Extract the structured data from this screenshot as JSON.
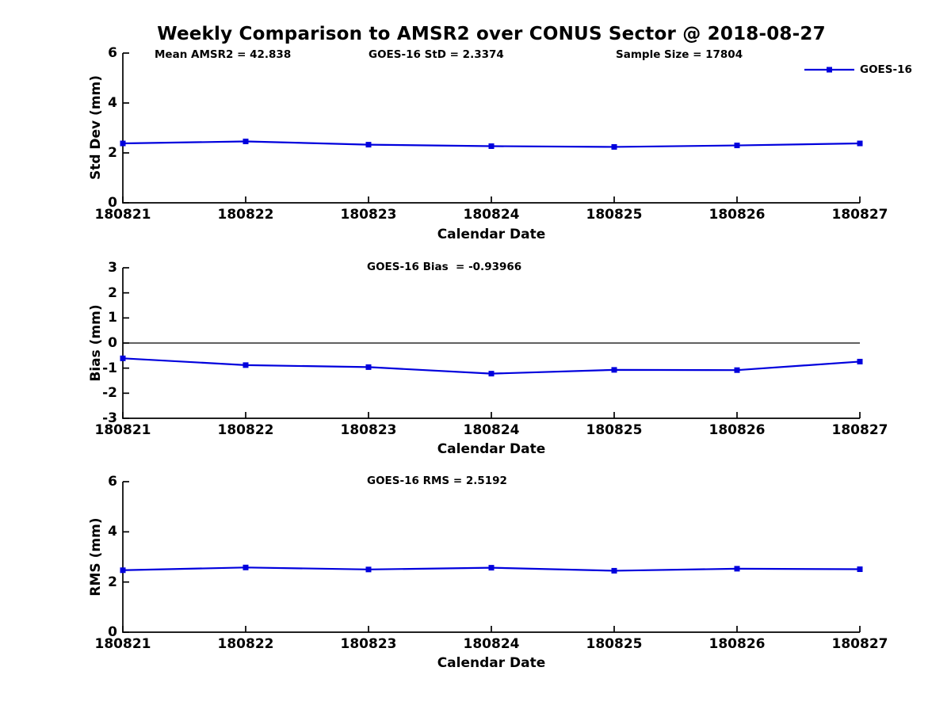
{
  "title": "Weekly Comparison to AMSR2 over CONUS Sector @ 2018-08-27",
  "colors": {
    "line": "#0000dd",
    "axis": "#000000",
    "text": "#000000",
    "background": "#ffffff"
  },
  "legend": {
    "label": "GOES-16",
    "position": "top-right",
    "marker": "square-on-line"
  },
  "chart_data": [
    {
      "type": "line",
      "title": "",
      "annotations": [
        "Mean AMSR2 = 42.838",
        "GOES-16 StD = 2.3374",
        "Sample Size = 17804"
      ],
      "xlabel": "Calendar Date",
      "ylabel": "Std Dev (mm)",
      "categories": [
        "180821",
        "180822",
        "180823",
        "180824",
        "180825",
        "180826",
        "180827"
      ],
      "series": [
        {
          "name": "GOES-16",
          "color": "#0000dd",
          "values": [
            2.38,
            2.46,
            2.33,
            2.27,
            2.24,
            2.3,
            2.38
          ]
        }
      ],
      "ylim": [
        0,
        6
      ],
      "yticks": [
        0,
        2,
        4,
        6
      ],
      "ytick_labels": [
        "6",
        "4",
        "2",
        "0"
      ],
      "grid": false,
      "zero_line": false,
      "stats": {
        "mean_amsr2": 42.838,
        "goes16_std": 2.3374,
        "sample_size": 17804
      }
    },
    {
      "type": "line",
      "title": "",
      "annotations": [
        "GOES-16 Bias  = -0.93966"
      ],
      "xlabel": "Calendar Date",
      "ylabel": "Bias (mm)",
      "categories": [
        "180821",
        "180822",
        "180823",
        "180824",
        "180825",
        "180826",
        "180827"
      ],
      "series": [
        {
          "name": "GOES-16",
          "color": "#0000dd",
          "values": [
            -0.61,
            -0.88,
            -0.96,
            -1.22,
            -1.07,
            -1.08,
            -0.74
          ]
        }
      ],
      "ylim": [
        -3,
        3
      ],
      "yticks": [
        -3,
        -2,
        -1,
        0,
        1,
        2,
        3
      ],
      "ytick_labels": [
        "3",
        "2",
        "1",
        "0",
        "-1",
        "-2",
        "-3"
      ],
      "grid": false,
      "zero_line": true,
      "stats": {
        "goes16_bias": -0.93966
      }
    },
    {
      "type": "line",
      "title": "",
      "annotations": [
        "GOES-16 RMS = 2.5192"
      ],
      "xlabel": "Calendar Date",
      "ylabel": "RMS (mm)",
      "categories": [
        "180821",
        "180822",
        "180823",
        "180824",
        "180825",
        "180826",
        "180827"
      ],
      "series": [
        {
          "name": "GOES-16",
          "color": "#0000dd",
          "values": [
            2.47,
            2.58,
            2.5,
            2.57,
            2.45,
            2.53,
            2.51
          ]
        }
      ],
      "ylim": [
        0,
        6
      ],
      "yticks": [
        0,
        2,
        4,
        6
      ],
      "ytick_labels": [
        "6",
        "4",
        "2",
        "0"
      ],
      "grid": false,
      "zero_line": false,
      "stats": {
        "goes16_rms": 2.5192
      }
    }
  ]
}
